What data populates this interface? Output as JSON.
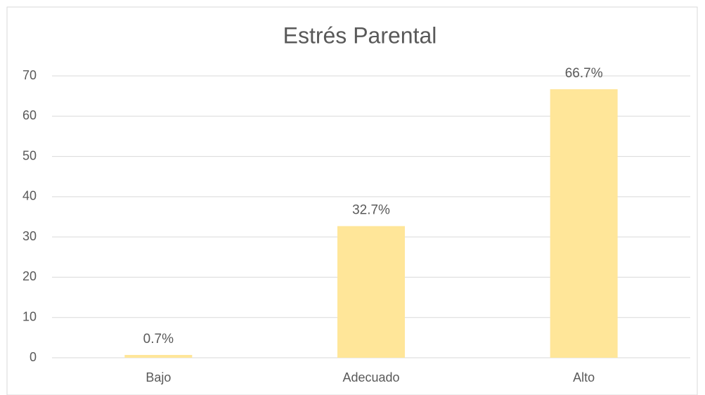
{
  "chart_data": {
    "type": "bar",
    "title": "Estrés Parental",
    "categories": [
      "Bajo",
      "Adecuado",
      "Alto"
    ],
    "values": [
      0.7,
      32.7,
      66.7
    ],
    "value_labels": [
      "0.7%",
      "32.7%",
      "66.7%"
    ],
    "color": "#ffe699",
    "ylim": [
      0,
      70
    ],
    "yticks": [
      0,
      10,
      20,
      30,
      40,
      50,
      60,
      70
    ],
    "grid": true
  }
}
